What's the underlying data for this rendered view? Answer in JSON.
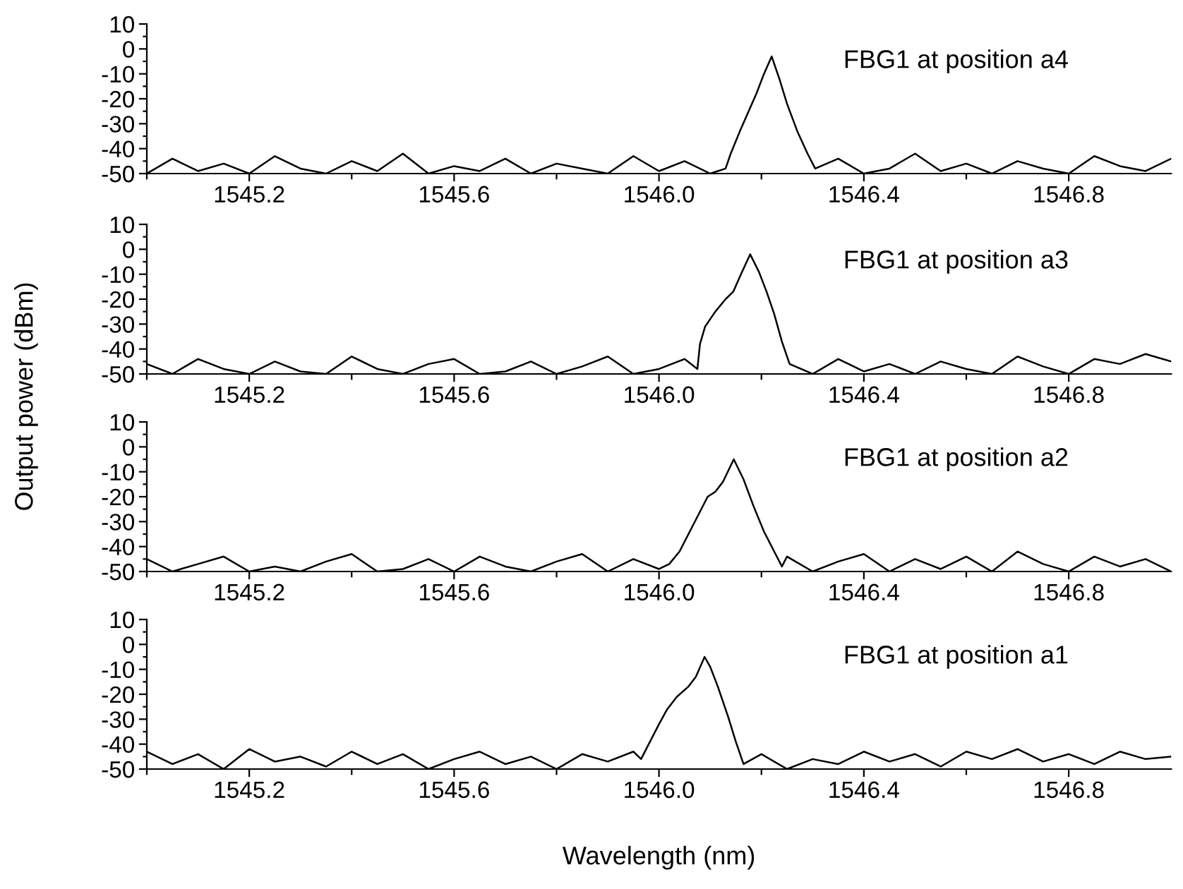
{
  "chart_data": [
    {
      "type": "line",
      "ylabel": "Output power (dBm)",
      "annotations": [
        "FBG1 at position a4"
      ],
      "xlim": [
        1545.0,
        1547.0
      ],
      "ylim": [
        -50,
        10
      ],
      "xticks": [
        {
          "value": 1545.0,
          "label": null
        },
        {
          "value": 1545.2,
          "label": "1545.2"
        },
        {
          "value": 1545.4,
          "label": null
        },
        {
          "value": 1545.6,
          "label": "1545.6"
        },
        {
          "value": 1545.8,
          "label": null
        },
        {
          "value": 1546.0,
          "label": "1546.0"
        },
        {
          "value": 1546.2,
          "label": null
        },
        {
          "value": 1546.4,
          "label": "1546.4"
        },
        {
          "value": 1546.6,
          "label": null
        },
        {
          "value": 1546.8,
          "label": "1546.8"
        }
      ],
      "yticks": [
        -50,
        {
          "value": -45,
          "label": null
        },
        -40,
        {
          "value": -35,
          "label": null
        },
        -30,
        {
          "value": -25,
          "label": null
        },
        -20,
        {
          "value": -15,
          "label": null
        },
        -10,
        {
          "value": -5,
          "label": null
        },
        0,
        {
          "value": 5,
          "label": null
        },
        10
      ],
      "series": [
        {
          "color": "#000000",
          "x": [
            1545.0,
            1545.05,
            1545.1,
            1545.15,
            1545.2,
            1545.25,
            1545.3,
            1545.35,
            1545.4,
            1545.45,
            1545.5,
            1545.55,
            1545.6,
            1545.65,
            1545.7,
            1545.75,
            1545.8,
            1545.85,
            1545.9,
            1545.95,
            1546.0,
            1546.05,
            1546.1,
            1546.13,
            1546.14,
            1546.16,
            1546.175,
            1546.19,
            1546.205,
            1546.22,
            1546.235,
            1546.25,
            1546.27,
            1546.29,
            1546.305,
            1546.35,
            1546.4,
            1546.45,
            1546.5,
            1546.55,
            1546.6,
            1546.65,
            1546.7,
            1546.75,
            1546.8,
            1546.85,
            1546.9,
            1546.95,
            1547.0
          ],
          "values": [
            -50,
            -44,
            -49,
            -46,
            -50,
            -43,
            -48,
            -50,
            -45,
            -49,
            -42,
            -50,
            -47,
            -49,
            -44,
            -50,
            -46,
            -48,
            -50,
            -43,
            -49,
            -45,
            -50,
            -48,
            -42,
            -32,
            -25,
            -18,
            -10,
            -3,
            -12,
            -22,
            -33,
            -42,
            -48,
            -44,
            -50,
            -48,
            -42,
            -49,
            -46,
            -50,
            -45,
            -48,
            -50,
            -43,
            -47,
            -49,
            -44
          ]
        }
      ]
    },
    {
      "type": "line",
      "annotations": [
        "FBG1 at position a3"
      ],
      "xlim": [
        1545.0,
        1547.0
      ],
      "ylim": [
        -50,
        10
      ],
      "xticks": [
        {
          "value": 1545.0,
          "label": null
        },
        {
          "value": 1545.2,
          "label": "1545.2"
        },
        {
          "value": 1545.4,
          "label": null
        },
        {
          "value": 1545.6,
          "label": "1545.6"
        },
        {
          "value": 1545.8,
          "label": null
        },
        {
          "value": 1546.0,
          "label": "1546.0"
        },
        {
          "value": 1546.2,
          "label": null
        },
        {
          "value": 1546.4,
          "label": "1546.4"
        },
        {
          "value": 1546.6,
          "label": null
        },
        {
          "value": 1546.8,
          "label": "1546.8"
        }
      ],
      "yticks": [
        -50,
        {
          "value": -45,
          "label": null
        },
        -40,
        {
          "value": -35,
          "label": null
        },
        -30,
        {
          "value": -25,
          "label": null
        },
        -20,
        {
          "value": -15,
          "label": null
        },
        -10,
        {
          "value": -5,
          "label": null
        },
        0,
        {
          "value": 5,
          "label": null
        },
        10
      ],
      "series": [
        {
          "color": "#000000",
          "x": [
            1545.0,
            1545.05,
            1545.1,
            1545.15,
            1545.2,
            1545.25,
            1545.3,
            1545.35,
            1545.4,
            1545.45,
            1545.5,
            1545.55,
            1545.6,
            1545.65,
            1545.7,
            1545.75,
            1545.8,
            1545.85,
            1545.9,
            1545.95,
            1546.0,
            1546.05,
            1546.075,
            1546.08,
            1546.09,
            1546.11,
            1546.13,
            1546.145,
            1546.16,
            1546.178,
            1546.195,
            1546.21,
            1546.225,
            1546.24,
            1546.255,
            1546.3,
            1546.35,
            1546.4,
            1546.45,
            1546.5,
            1546.55,
            1546.6,
            1546.65,
            1546.7,
            1546.75,
            1546.8,
            1546.85,
            1546.9,
            1546.95,
            1547.0
          ],
          "values": [
            -46,
            -50,
            -44,
            -48,
            -50,
            -45,
            -49,
            -50,
            -43,
            -48,
            -50,
            -46,
            -44,
            -50,
            -49,
            -45,
            -50,
            -47,
            -43,
            -50,
            -48,
            -44,
            -48,
            -38,
            -31,
            -25,
            -20,
            -17,
            -10,
            -2,
            -9,
            -17,
            -26,
            -37,
            -46,
            -50,
            -44,
            -49,
            -46,
            -50,
            -45,
            -48,
            -50,
            -43,
            -47,
            -50,
            -44,
            -46,
            -42,
            -45
          ]
        }
      ]
    },
    {
      "type": "line",
      "annotations": [
        "FBG1 at position a2"
      ],
      "xlim": [
        1545.0,
        1547.0
      ],
      "ylim": [
        -50,
        10
      ],
      "xticks": [
        {
          "value": 1545.0,
          "label": null
        },
        {
          "value": 1545.2,
          "label": "1545.2"
        },
        {
          "value": 1545.4,
          "label": null
        },
        {
          "value": 1545.6,
          "label": "1545.6"
        },
        {
          "value": 1545.8,
          "label": null
        },
        {
          "value": 1546.0,
          "label": "1546.0"
        },
        {
          "value": 1546.2,
          "label": null
        },
        {
          "value": 1546.4,
          "label": "1546.4"
        },
        {
          "value": 1546.6,
          "label": null
        },
        {
          "value": 1546.8,
          "label": "1546.8"
        }
      ],
      "yticks": [
        -50,
        {
          "value": -45,
          "label": null
        },
        -40,
        {
          "value": -35,
          "label": null
        },
        -30,
        {
          "value": -25,
          "label": null
        },
        -20,
        {
          "value": -15,
          "label": null
        },
        -10,
        {
          "value": -5,
          "label": null
        },
        0,
        {
          "value": 5,
          "label": null
        },
        10
      ],
      "series": [
        {
          "color": "#000000",
          "x": [
            1545.0,
            1545.05,
            1545.1,
            1545.15,
            1545.2,
            1545.25,
            1545.3,
            1545.35,
            1545.4,
            1545.45,
            1545.5,
            1545.55,
            1545.6,
            1545.65,
            1545.7,
            1545.75,
            1545.8,
            1545.85,
            1545.9,
            1545.95,
            1546.0,
            1546.02,
            1546.04,
            1546.06,
            1546.08,
            1546.095,
            1546.11,
            1546.125,
            1546.146,
            1546.165,
            1546.185,
            1546.205,
            1546.225,
            1546.24,
            1546.25,
            1546.3,
            1546.35,
            1546.4,
            1546.45,
            1546.5,
            1546.55,
            1546.6,
            1546.65,
            1546.7,
            1546.75,
            1546.8,
            1546.85,
            1546.9,
            1546.95,
            1547.0
          ],
          "values": [
            -45,
            -50,
            -47,
            -44,
            -50,
            -48,
            -50,
            -46,
            -43,
            -50,
            -49,
            -45,
            -50,
            -44,
            -48,
            -50,
            -46,
            -43,
            -50,
            -45,
            -49,
            -47,
            -42,
            -34,
            -26,
            -20,
            -18,
            -14,
            -5,
            -13,
            -24,
            -34,
            -42,
            -48,
            -44,
            -50,
            -46,
            -43,
            -50,
            -45,
            -49,
            -44,
            -50,
            -42,
            -47,
            -50,
            -44,
            -48,
            -45,
            -50
          ]
        }
      ]
    },
    {
      "type": "line",
      "xlabel": "Wavelength (nm)",
      "annotations": [
        "FBG1 at position a1"
      ],
      "xlim": [
        1545.0,
        1547.0
      ],
      "ylim": [
        -50,
        10
      ],
      "xticks": [
        {
          "value": 1545.0,
          "label": null
        },
        {
          "value": 1545.2,
          "label": "1545.2"
        },
        {
          "value": 1545.4,
          "label": null
        },
        {
          "value": 1545.6,
          "label": "1545.6"
        },
        {
          "value": 1545.8,
          "label": null
        },
        {
          "value": 1546.0,
          "label": "1546.0"
        },
        {
          "value": 1546.2,
          "label": null
        },
        {
          "value": 1546.4,
          "label": "1546.4"
        },
        {
          "value": 1546.6,
          "label": null
        },
        {
          "value": 1546.8,
          "label": "1546.8"
        }
      ],
      "yticks": [
        -50,
        {
          "value": -45,
          "label": null
        },
        -40,
        {
          "value": -35,
          "label": null
        },
        -30,
        {
          "value": -25,
          "label": null
        },
        -20,
        {
          "value": -15,
          "label": null
        },
        -10,
        {
          "value": -5,
          "label": null
        },
        0,
        {
          "value": 5,
          "label": null
        },
        10
      ],
      "series": [
        {
          "color": "#000000",
          "x": [
            1545.0,
            1545.05,
            1545.1,
            1545.15,
            1545.2,
            1545.25,
            1545.3,
            1545.35,
            1545.4,
            1545.45,
            1545.5,
            1545.55,
            1545.6,
            1545.65,
            1545.7,
            1545.75,
            1545.8,
            1545.85,
            1545.9,
            1545.95,
            1545.965,
            1545.98,
            1546.0,
            1546.016,
            1546.035,
            1546.057,
            1546.072,
            1546.089,
            1546.1,
            1546.115,
            1546.135,
            1546.15,
            1546.165,
            1546.2,
            1546.25,
            1546.3,
            1546.35,
            1546.4,
            1546.45,
            1546.5,
            1546.55,
            1546.6,
            1546.65,
            1546.7,
            1546.75,
            1546.8,
            1546.85,
            1546.9,
            1546.95,
            1547.0
          ],
          "values": [
            -43,
            -48,
            -44,
            -50,
            -42,
            -47,
            -45,
            -49,
            -43,
            -48,
            -44,
            -50,
            -46,
            -43,
            -48,
            -45,
            -50,
            -44,
            -47,
            -43,
            -46,
            -40,
            -32,
            -26,
            -21,
            -17,
            -13,
            -5,
            -9,
            -17,
            -29,
            -39,
            -48,
            -44,
            -50,
            -46,
            -48,
            -43,
            -47,
            -44,
            -49,
            -43,
            -46,
            -42,
            -47,
            -44,
            -48,
            -43,
            -46,
            -45
          ]
        }
      ]
    }
  ]
}
